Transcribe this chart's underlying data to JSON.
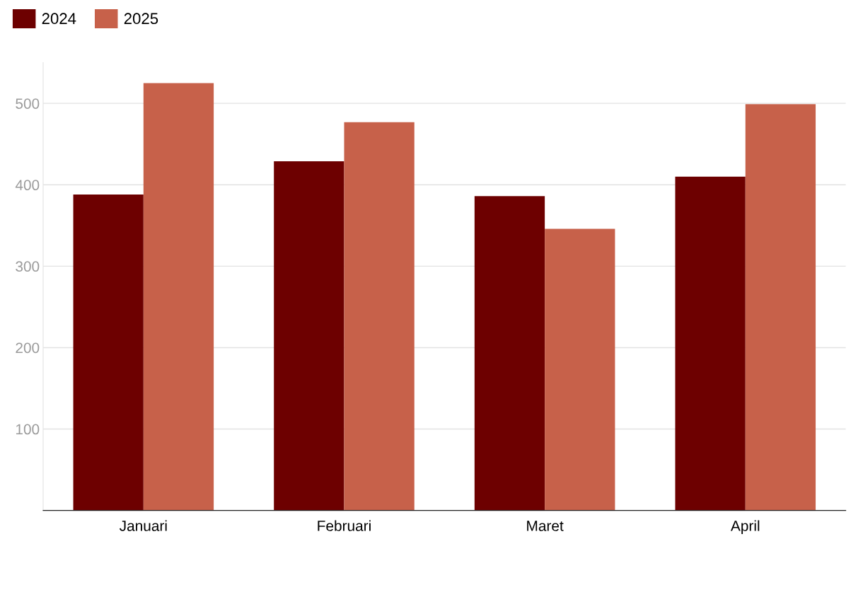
{
  "chart_data": {
    "type": "bar",
    "categories": [
      "Januari",
      "Februari",
      "Maret",
      "April"
    ],
    "series": [
      {
        "name": "2024",
        "color": "#6d0000",
        "values": [
          388,
          429,
          386,
          410
        ]
      },
      {
        "name": "2025",
        "color": "#c7614a",
        "values": [
          525,
          477,
          346,
          499
        ]
      }
    ],
    "ylim": [
      0,
      550
    ],
    "yticks": [
      100,
      200,
      300,
      400,
      500
    ],
    "grid": "y",
    "legend": "top left"
  }
}
